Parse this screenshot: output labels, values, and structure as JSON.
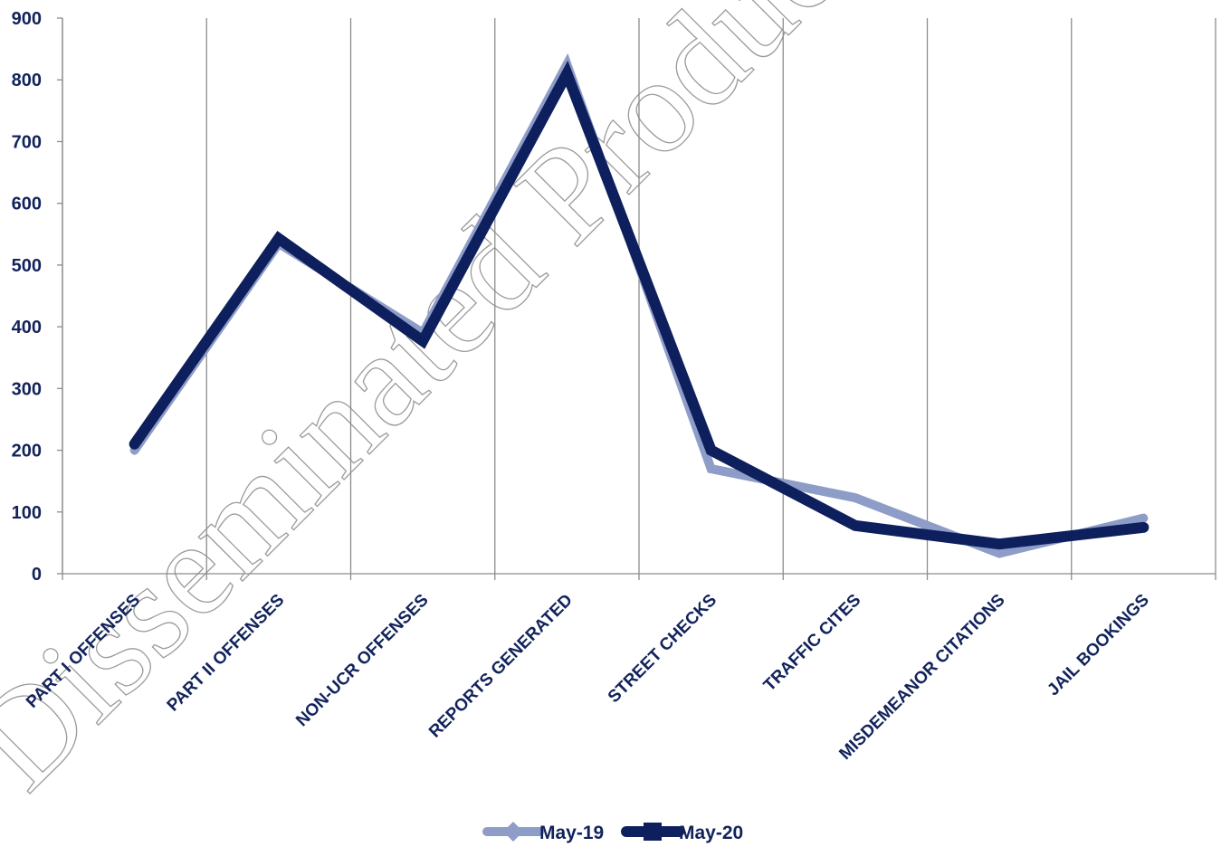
{
  "watermark": "Disseminated Product Incl",
  "colors": {
    "axis_text": "#12235c",
    "grid": "#8c8c8c",
    "may19": "#8e9cc8",
    "may20": "#0d1f5c"
  },
  "chart_data": {
    "type": "line",
    "categories": [
      "PART I OFFENSES",
      "PART II OFFENSES",
      "NON-UCR OFFENSES",
      "REPORTS GENERATED",
      "STREET CHECKS",
      "TRAFFIC CITES",
      "MISDEMEANOR CITATIONS",
      "JAIL BOOKINGS"
    ],
    "series": [
      {
        "name": "May-19",
        "values": [
          200,
          535,
          390,
          825,
          170,
          123,
          33,
          90
        ],
        "color": "#8e9cc8"
      },
      {
        "name": "May-20",
        "values": [
          210,
          543,
          377,
          810,
          200,
          78,
          48,
          75
        ],
        "color": "#0d1f5c"
      }
    ],
    "yticks": [
      "0",
      "100",
      "200",
      "300",
      "400",
      "500",
      "600",
      "700",
      "800",
      "900"
    ],
    "ylim": [
      0,
      900
    ],
    "title": "",
    "xlabel": "",
    "ylabel": "",
    "grid": "vertical",
    "legend": "bottom-center"
  }
}
